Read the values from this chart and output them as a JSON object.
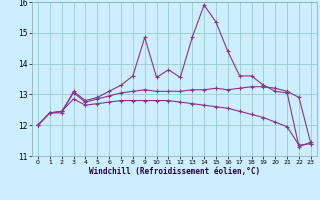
{
  "xlabel": "Windchill (Refroidissement éolien,°C)",
  "background_color": "#cceeff",
  "grid_color": "#99cccc",
  "line_color": "#883388",
  "xlim": [
    -0.5,
    23.5
  ],
  "ylim": [
    11,
    16
  ],
  "xticks": [
    0,
    1,
    2,
    3,
    4,
    5,
    6,
    7,
    8,
    9,
    10,
    11,
    12,
    13,
    14,
    15,
    16,
    17,
    18,
    19,
    20,
    21,
    22,
    23
  ],
  "yticks": [
    11,
    12,
    13,
    14,
    15,
    16
  ],
  "x": [
    0,
    1,
    2,
    3,
    4,
    5,
    6,
    7,
    8,
    9,
    10,
    11,
    12,
    13,
    14,
    15,
    16,
    17,
    18,
    19,
    20,
    21,
    22,
    23
  ],
  "line1": [
    12.0,
    12.4,
    12.4,
    13.1,
    12.8,
    12.9,
    13.1,
    13.3,
    13.6,
    14.85,
    13.55,
    13.8,
    13.55,
    14.85,
    15.9,
    15.35,
    14.4,
    13.6,
    13.6,
    13.3,
    13.1,
    13.05,
    11.3,
    11.45
  ],
  "line2": [
    12.0,
    12.4,
    12.45,
    13.05,
    12.75,
    12.85,
    12.95,
    13.05,
    13.1,
    13.15,
    13.1,
    13.1,
    13.1,
    13.15,
    13.15,
    13.2,
    13.15,
    13.2,
    13.25,
    13.25,
    13.2,
    13.1,
    12.9,
    11.4
  ],
  "line3": [
    12.0,
    12.4,
    12.45,
    12.85,
    12.65,
    12.7,
    12.75,
    12.8,
    12.8,
    12.8,
    12.8,
    12.8,
    12.75,
    12.7,
    12.65,
    12.6,
    12.55,
    12.45,
    12.35,
    12.25,
    12.1,
    11.95,
    11.35,
    11.4
  ]
}
